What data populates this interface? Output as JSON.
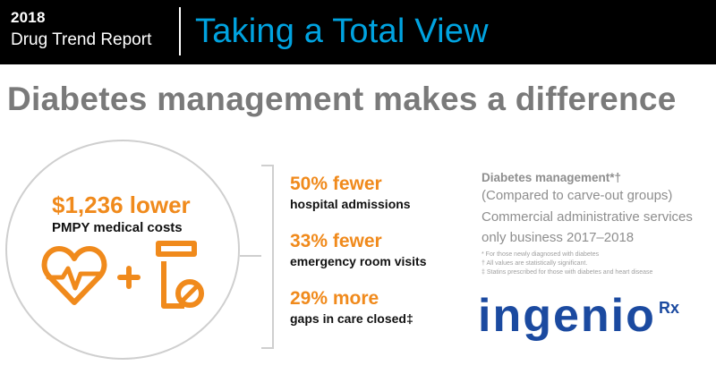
{
  "header": {
    "year": "2018",
    "report_name": "Drug Trend Report",
    "banner_title": "Taking a Total View"
  },
  "headline": "Diabetes management makes a difference",
  "highlight": {
    "value": "$1,236 lower",
    "label": "PMPY medical costs",
    "icons": [
      "heartbeat-icon",
      "plus-icon",
      "prescription-icon"
    ]
  },
  "stats": [
    {
      "value": "50% fewer",
      "label": "hospital admissions"
    },
    {
      "value": "33% fewer",
      "label": "emergency room visits"
    },
    {
      "value": "29% more",
      "label": "gaps in care closed‡"
    }
  ],
  "side_note": {
    "title": "Diabetes management*†",
    "lines": [
      "(Compared to carve-out groups)",
      "Commercial administrative services",
      "only business 2017–2018"
    ],
    "footnotes": [
      "* For those newly diagnosed with diabetes",
      "† All values are statistically significant.",
      "‡ Statins prescribed for those with diabetes and heart disease"
    ]
  },
  "logo": {
    "text": "ingenio",
    "suffix": "Rx"
  },
  "colors": {
    "banner_bg": "#000000",
    "banner_title": "#00a3e0",
    "accent": "#f08a1c",
    "logo": "#1b4aa0",
    "headline": "#7a7a7a"
  }
}
